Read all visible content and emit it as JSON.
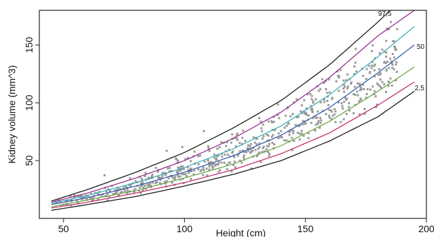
{
  "chart_data": {
    "type": "scatter",
    "title": "",
    "xlabel": "Height (cm)",
    "ylabel": "Kidney volume (mm^3)",
    "xlim": [
      40,
      200
    ],
    "ylim": [
      0,
      180
    ],
    "x_ticks": [
      50,
      100,
      150,
      200
    ],
    "y_ticks": [
      50,
      100,
      150
    ],
    "grid": false,
    "legend": "none",
    "point_color": "#9a9a9a",
    "point_summary": {
      "x_range": [
        45,
        190
      ],
      "note": "several hundred gray square markers scattered around the centile curves"
    },
    "series": [
      {
        "name": "97,5",
        "color": "#1a1a1a",
        "x": [
          45,
          60,
          80,
          100,
          120,
          140,
          160,
          180,
          185
        ],
        "y": [
          15,
          25,
          40,
          57,
          78,
          102,
          133,
          170,
          180
        ]
      },
      {
        "color": "#9b2f8e",
        "x": [
          45,
          60,
          80,
          100,
          120,
          140,
          160,
          180,
          195
        ],
        "y": [
          14,
          22,
          35,
          50,
          69,
          92,
          122,
          158,
          180
        ]
      },
      {
        "color": "#3fb0b8",
        "x": [
          45,
          60,
          80,
          100,
          120,
          140,
          160,
          180,
          195
        ],
        "y": [
          13,
          20,
          31,
          44,
          60,
          80,
          107,
          140,
          166
        ]
      },
      {
        "name": "50",
        "color": "#3a5fb0",
        "x": [
          45,
          60,
          80,
          100,
          120,
          140,
          160,
          180,
          195
        ],
        "y": [
          12,
          18,
          28,
          40,
          54,
          72,
          96,
          126,
          150
        ]
      },
      {
        "color": "#6fa84a",
        "x": [
          45,
          60,
          80,
          100,
          120,
          140,
          160,
          180,
          195
        ],
        "y": [
          10,
          16,
          24,
          35,
          47,
          63,
          84,
          110,
          131
        ]
      },
      {
        "name": "2,5",
        "color": "#c0306a",
        "x": [
          45,
          60,
          80,
          100,
          120,
          140,
          160,
          180,
          195
        ],
        "y": [
          9,
          14,
          22,
          31,
          42,
          56,
          74,
          98,
          118
        ]
      },
      {
        "color": "#1a1a1a",
        "x": [
          45,
          60,
          80,
          100,
          120,
          140,
          160,
          180,
          195
        ],
        "y": [
          7,
          12,
          19,
          28,
          38,
          50,
          67,
          88,
          110
        ]
      }
    ]
  }
}
